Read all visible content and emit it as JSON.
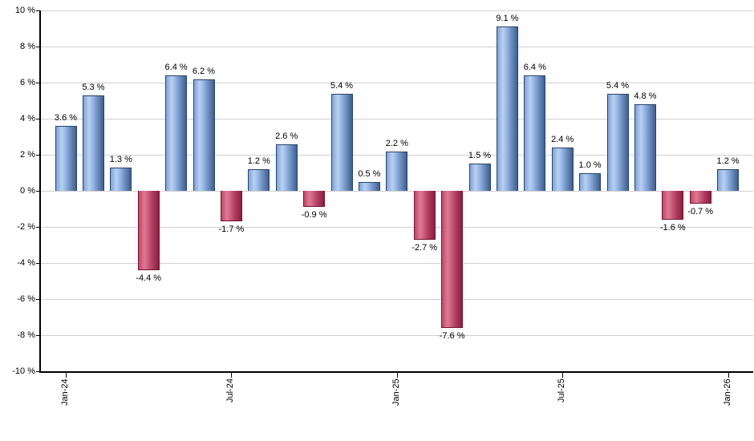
{
  "chart_data": {
    "type": "bar",
    "title": "",
    "xlabel": "",
    "ylabel": "",
    "grid": "horizontal",
    "legend": "none",
    "ylim": [
      -10,
      10
    ],
    "y_tick_step": 2,
    "y_tick_labels": [
      "10 %",
      "8 %",
      "6 %",
      "4 %",
      "2 %",
      "0 %",
      "-2 %",
      "-4 %",
      "-6 %",
      "-8 %",
      "-10 %"
    ],
    "categories": [
      "Jan-24",
      "Feb-24",
      "Mar-24",
      "Apr-24",
      "May-24",
      "Jun-24",
      "Jul-24",
      "Aug-24",
      "Sep-24",
      "Oct-24",
      "Nov-24",
      "Dec-24",
      "Jan-25",
      "Feb-25",
      "Mar-25",
      "Apr-25",
      "May-25",
      "Jun-25",
      "Jul-25",
      "Aug-25",
      "Sep-25",
      "Oct-25",
      "Nov-25",
      "Dec-25",
      "Jan-26"
    ],
    "values": [
      3.6,
      5.3,
      1.3,
      -4.4,
      6.4,
      6.2,
      -1.7,
      1.2,
      2.6,
      -0.9,
      5.4,
      0.5,
      2.2,
      -2.7,
      -7.6,
      1.5,
      9.1,
      6.4,
      2.4,
      1.0,
      5.4,
      4.8,
      -1.6,
      -0.7,
      1.2
    ],
    "bar_labels": [
      "3.6 %",
      "5.3 %",
      "1.3 %",
      "-4.4 %",
      "6.4 %",
      "6.2 %",
      "-1.7 %",
      "1.2 %",
      "2.6 %",
      "-0.9 %",
      "5.4 %",
      "0.5 %",
      "2.2 %",
      "-2.7 %",
      "-7.6 %",
      "1.5 %",
      "9.1 %",
      "6.4 %",
      "2.4 %",
      "1.0 %",
      "5.4 %",
      "4.8 %",
      "-1.6 %",
      "-0.7 %",
      "1.2 %"
    ],
    "x_tick_labels": [
      {
        "label": "Jan-24",
        "month_index": 0
      },
      {
        "label": "Jul-24",
        "month_index": 6
      },
      {
        "label": "Jan-25",
        "month_index": 12
      },
      {
        "label": "Jul-25",
        "month_index": 18
      },
      {
        "label": "Jan-26",
        "month_index": 24
      }
    ],
    "colors": {
      "positive_bar_light": "#b9d1f2",
      "positive_bar_dark": "#3f5e8e",
      "positive_border": "#26456e",
      "negative_bar_light": "#dc7b95",
      "negative_bar_dark": "#8c1f3f",
      "negative_border": "#75132f",
      "gridline": "#d0d0d0",
      "axis": "#000000",
      "label_text": "#000000",
      "background": "#ffffff"
    }
  }
}
